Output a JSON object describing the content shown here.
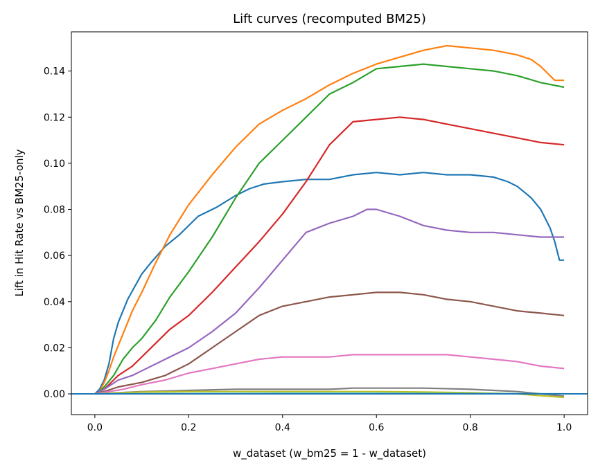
{
  "chart_data": {
    "type": "line",
    "title": "Lift curves (recomputed BM25)",
    "xlabel": "w_dataset  (w_bm25 = 1 - w_dataset)",
    "ylabel": "Lift in Hit Rate vs BM25-only",
    "xlim": [
      -0.05,
      1.05
    ],
    "ylim": [
      -0.009,
      0.157
    ],
    "xticks": [
      0.0,
      0.2,
      0.4,
      0.6,
      0.8,
      1.0
    ],
    "xtick_labels": [
      "0.0",
      "0.2",
      "0.4",
      "0.6",
      "0.8",
      "1.0"
    ],
    "yticks": [
      0.0,
      0.02,
      0.04,
      0.06,
      0.08,
      0.1,
      0.12,
      0.14
    ],
    "ytick_labels": [
      "0.00",
      "0.02",
      "0.04",
      "0.06",
      "0.08",
      "0.10",
      "0.12",
      "0.14"
    ],
    "grid": false,
    "legend": false,
    "baseline": {
      "y": 0,
      "color": "#1f77b4"
    },
    "series": [
      {
        "color": "#1f77b4",
        "x": [
          0,
          0.01,
          0.02,
          0.03,
          0.04,
          0.05,
          0.07,
          0.1,
          0.12,
          0.15,
          0.18,
          0.22,
          0.26,
          0.3,
          0.33,
          0.36,
          0.4,
          0.45,
          0.5,
          0.55,
          0.6,
          0.65,
          0.7,
          0.75,
          0.8,
          0.85,
          0.88,
          0.9,
          0.93,
          0.95,
          0.97,
          0.98,
          0.99,
          1.0
        ],
        "y": [
          0,
          0.002,
          0.006,
          0.013,
          0.024,
          0.031,
          0.041,
          0.052,
          0.057,
          0.064,
          0.069,
          0.077,
          0.081,
          0.086,
          0.089,
          0.091,
          0.092,
          0.093,
          0.093,
          0.095,
          0.096,
          0.095,
          0.096,
          0.095,
          0.095,
          0.094,
          0.092,
          0.09,
          0.085,
          0.08,
          0.072,
          0.066,
          0.058,
          0.058
        ]
      },
      {
        "color": "#ff7f0e",
        "x": [
          0,
          0.01,
          0.02,
          0.03,
          0.04,
          0.06,
          0.08,
          0.1,
          0.13,
          0.16,
          0.2,
          0.25,
          0.3,
          0.35,
          0.4,
          0.45,
          0.5,
          0.55,
          0.6,
          0.65,
          0.7,
          0.75,
          0.8,
          0.85,
          0.9,
          0.93,
          0.95,
          0.97,
          0.98,
          1.0
        ],
        "y": [
          0,
          0.001,
          0.005,
          0.01,
          0.016,
          0.026,
          0.036,
          0.044,
          0.057,
          0.069,
          0.082,
          0.095,
          0.107,
          0.117,
          0.123,
          0.128,
          0.134,
          0.139,
          0.143,
          0.146,
          0.149,
          0.151,
          0.15,
          0.149,
          0.147,
          0.145,
          0.142,
          0.138,
          0.136,
          0.136
        ]
      },
      {
        "color": "#2ca02c",
        "x": [
          0,
          0.01,
          0.02,
          0.04,
          0.06,
          0.08,
          0.1,
          0.13,
          0.16,
          0.2,
          0.25,
          0.3,
          0.35,
          0.4,
          0.45,
          0.5,
          0.55,
          0.6,
          0.65,
          0.7,
          0.75,
          0.8,
          0.85,
          0.9,
          0.95,
          1.0
        ],
        "y": [
          0,
          0.001,
          0.003,
          0.008,
          0.015,
          0.02,
          0.024,
          0.032,
          0.042,
          0.053,
          0.068,
          0.085,
          0.1,
          0.11,
          0.12,
          0.13,
          0.135,
          0.141,
          0.142,
          0.143,
          0.142,
          0.141,
          0.14,
          0.138,
          0.135,
          0.133
        ]
      },
      {
        "color": "#d62728",
        "x": [
          0,
          0.01,
          0.02,
          0.05,
          0.08,
          0.1,
          0.13,
          0.16,
          0.2,
          0.25,
          0.3,
          0.35,
          0.4,
          0.45,
          0.5,
          0.55,
          0.6,
          0.65,
          0.7,
          0.75,
          0.8,
          0.85,
          0.9,
          0.95,
          1.0
        ],
        "y": [
          0,
          0.001,
          0.002,
          0.008,
          0.012,
          0.016,
          0.022,
          0.028,
          0.034,
          0.044,
          0.055,
          0.066,
          0.078,
          0.092,
          0.108,
          0.118,
          0.119,
          0.12,
          0.119,
          0.117,
          0.115,
          0.113,
          0.111,
          0.109,
          0.108
        ]
      },
      {
        "color": "#9467bd",
        "x": [
          0,
          0.02,
          0.05,
          0.08,
          0.1,
          0.15,
          0.2,
          0.25,
          0.3,
          0.35,
          0.4,
          0.45,
          0.5,
          0.55,
          0.58,
          0.6,
          0.65,
          0.7,
          0.75,
          0.8,
          0.85,
          0.9,
          0.95,
          1.0
        ],
        "y": [
          0,
          0.002,
          0.006,
          0.008,
          0.01,
          0.015,
          0.02,
          0.027,
          0.035,
          0.046,
          0.058,
          0.07,
          0.074,
          0.077,
          0.08,
          0.08,
          0.077,
          0.073,
          0.071,
          0.07,
          0.07,
          0.069,
          0.068,
          0.068
        ]
      },
      {
        "color": "#8c564b",
        "x": [
          0,
          0.02,
          0.05,
          0.1,
          0.15,
          0.2,
          0.25,
          0.3,
          0.35,
          0.4,
          0.45,
          0.5,
          0.55,
          0.6,
          0.65,
          0.7,
          0.75,
          0.8,
          0.85,
          0.9,
          0.95,
          1.0
        ],
        "y": [
          0,
          0.001,
          0.003,
          0.005,
          0.008,
          0.013,
          0.02,
          0.027,
          0.034,
          0.038,
          0.04,
          0.042,
          0.043,
          0.044,
          0.044,
          0.043,
          0.041,
          0.04,
          0.038,
          0.036,
          0.035,
          0.034
        ]
      },
      {
        "color": "#e377c2",
        "x": [
          0,
          0.03,
          0.06,
          0.1,
          0.15,
          0.2,
          0.25,
          0.3,
          0.35,
          0.4,
          0.45,
          0.5,
          0.55,
          0.6,
          0.65,
          0.7,
          0.75,
          0.8,
          0.85,
          0.9,
          0.95,
          1.0
        ],
        "y": [
          0,
          0.001,
          0.002,
          0.004,
          0.006,
          0.009,
          0.011,
          0.013,
          0.015,
          0.016,
          0.016,
          0.016,
          0.017,
          0.017,
          0.017,
          0.017,
          0.017,
          0.016,
          0.015,
          0.014,
          0.012,
          0.011
        ]
      },
      {
        "color": "#7f7f7f",
        "x": [
          0,
          0.05,
          0.1,
          0.2,
          0.3,
          0.4,
          0.5,
          0.55,
          0.6,
          0.7,
          0.8,
          0.85,
          0.9,
          0.95,
          1.0
        ],
        "y": [
          0,
          0.0005,
          0.001,
          0.0015,
          0.002,
          0.002,
          0.002,
          0.0025,
          0.0025,
          0.0025,
          0.002,
          0.0015,
          0.001,
          0.0,
          -0.001
        ]
      },
      {
        "color": "#bcbd22",
        "x": [
          0,
          0.1,
          0.2,
          0.3,
          0.4,
          0.5,
          0.6,
          0.7,
          0.8,
          0.9,
          0.95,
          1.0
        ],
        "y": [
          0,
          0.0008,
          0.001,
          0.001,
          0.001,
          0.001,
          0.001,
          0.0008,
          0.0005,
          0.0,
          -0.0008,
          -0.0015
        ]
      },
      {
        "color": "#17becf",
        "x": [
          0,
          0.2,
          0.4,
          0.6,
          0.8,
          1.0
        ],
        "y": [
          0,
          0.0001,
          0.0002,
          0.0002,
          0.0001,
          0.0
        ]
      }
    ]
  }
}
